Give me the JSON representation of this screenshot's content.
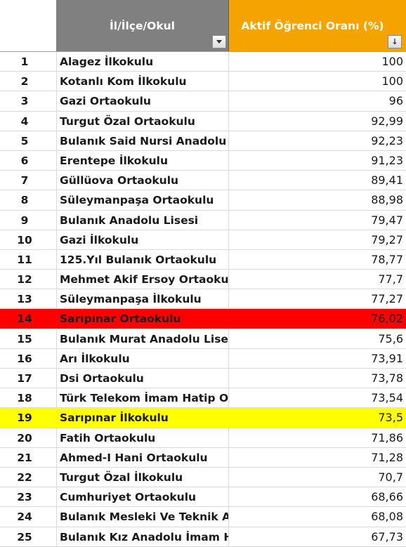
{
  "header": {
    "okul_label": "İl/İlçe/Okul",
    "oran_label": "Aktif Öğrenci Oranı (%)",
    "okul_filter_icon": "dropdown-arrow-icon",
    "oran_filter_icon": "sort-descending-icon"
  },
  "highlight_colors": {
    "red": "#ff0000",
    "yellow": "#ffff00",
    "oran_header": "#f5a300",
    "okul_header": "#808080"
  },
  "rows": [
    {
      "no": "1",
      "okul": "Alagez İlkokulu",
      "oran": "100",
      "hl": ""
    },
    {
      "no": "2",
      "okul": "Kotanlı Kom İlkokulu",
      "oran": "100",
      "hl": ""
    },
    {
      "no": "3",
      "okul": "Gazi Ortaokulu",
      "oran": "96",
      "hl": ""
    },
    {
      "no": "4",
      "okul": "Turgut Özal Ortaokulu",
      "oran": "92,99",
      "hl": ""
    },
    {
      "no": "5",
      "okul": "Bulanık Said Nursi Anadolu Li",
      "oran": "92,23",
      "hl": ""
    },
    {
      "no": "6",
      "okul": "Erentepe İlkokulu",
      "oran": "91,23",
      "hl": ""
    },
    {
      "no": "7",
      "okul": "Güllüova Ortaokulu",
      "oran": "89,41",
      "hl": ""
    },
    {
      "no": "8",
      "okul": "Süleymanpaşa Ortaokulu",
      "oran": "88,98",
      "hl": ""
    },
    {
      "no": "9",
      "okul": "Bulanık Anadolu Lisesi",
      "oran": "79,47",
      "hl": ""
    },
    {
      "no": "10",
      "okul": "Gazi İlkokulu",
      "oran": "79,27",
      "hl": ""
    },
    {
      "no": "11",
      "okul": "125.Yıl Bulanık Ortaokulu",
      "oran": "78,77",
      "hl": ""
    },
    {
      "no": "12",
      "okul": "Mehmet Akif Ersoy Ortaokul",
      "oran": "77,7",
      "hl": ""
    },
    {
      "no": "13",
      "okul": "Süleymanpaşa İlkokulu",
      "oran": "77,27",
      "hl": ""
    },
    {
      "no": "14",
      "okul": "Sarıpınar Ortaokulu",
      "oran": "76,02",
      "hl": "red"
    },
    {
      "no": "15",
      "okul": "Bulanık Murat Anadolu Lisesi",
      "oran": "75,6",
      "hl": ""
    },
    {
      "no": "16",
      "okul": "Arı İlkokulu",
      "oran": "73,91",
      "hl": ""
    },
    {
      "no": "17",
      "okul": "Dsi Ortaokulu",
      "oran": "73,78",
      "hl": ""
    },
    {
      "no": "18",
      "okul": "Türk Telekom İmam Hatip Or",
      "oran": "73,54",
      "hl": ""
    },
    {
      "no": "19",
      "okul": "Sarıpınar İlkokulu",
      "oran": "73,5",
      "hl": "yellow"
    },
    {
      "no": "20",
      "okul": "Fatih Ortaokulu",
      "oran": "71,86",
      "hl": ""
    },
    {
      "no": "21",
      "okul": "Ahmed-I Hani Ortaokulu",
      "oran": "71,28",
      "hl": ""
    },
    {
      "no": "22",
      "okul": "Turgut Özal İlkokulu",
      "oran": "70,7",
      "hl": ""
    },
    {
      "no": "23",
      "okul": "Cumhuriyet Ortaokulu",
      "oran": "68,66",
      "hl": ""
    },
    {
      "no": "24",
      "okul": "Bulanık Mesleki Ve Teknik Ar",
      "oran": "68,08",
      "hl": ""
    },
    {
      "no": "25",
      "okul": "Bulanık Kız Anadolu İmam Ha",
      "oran": "67,73",
      "hl": ""
    }
  ]
}
